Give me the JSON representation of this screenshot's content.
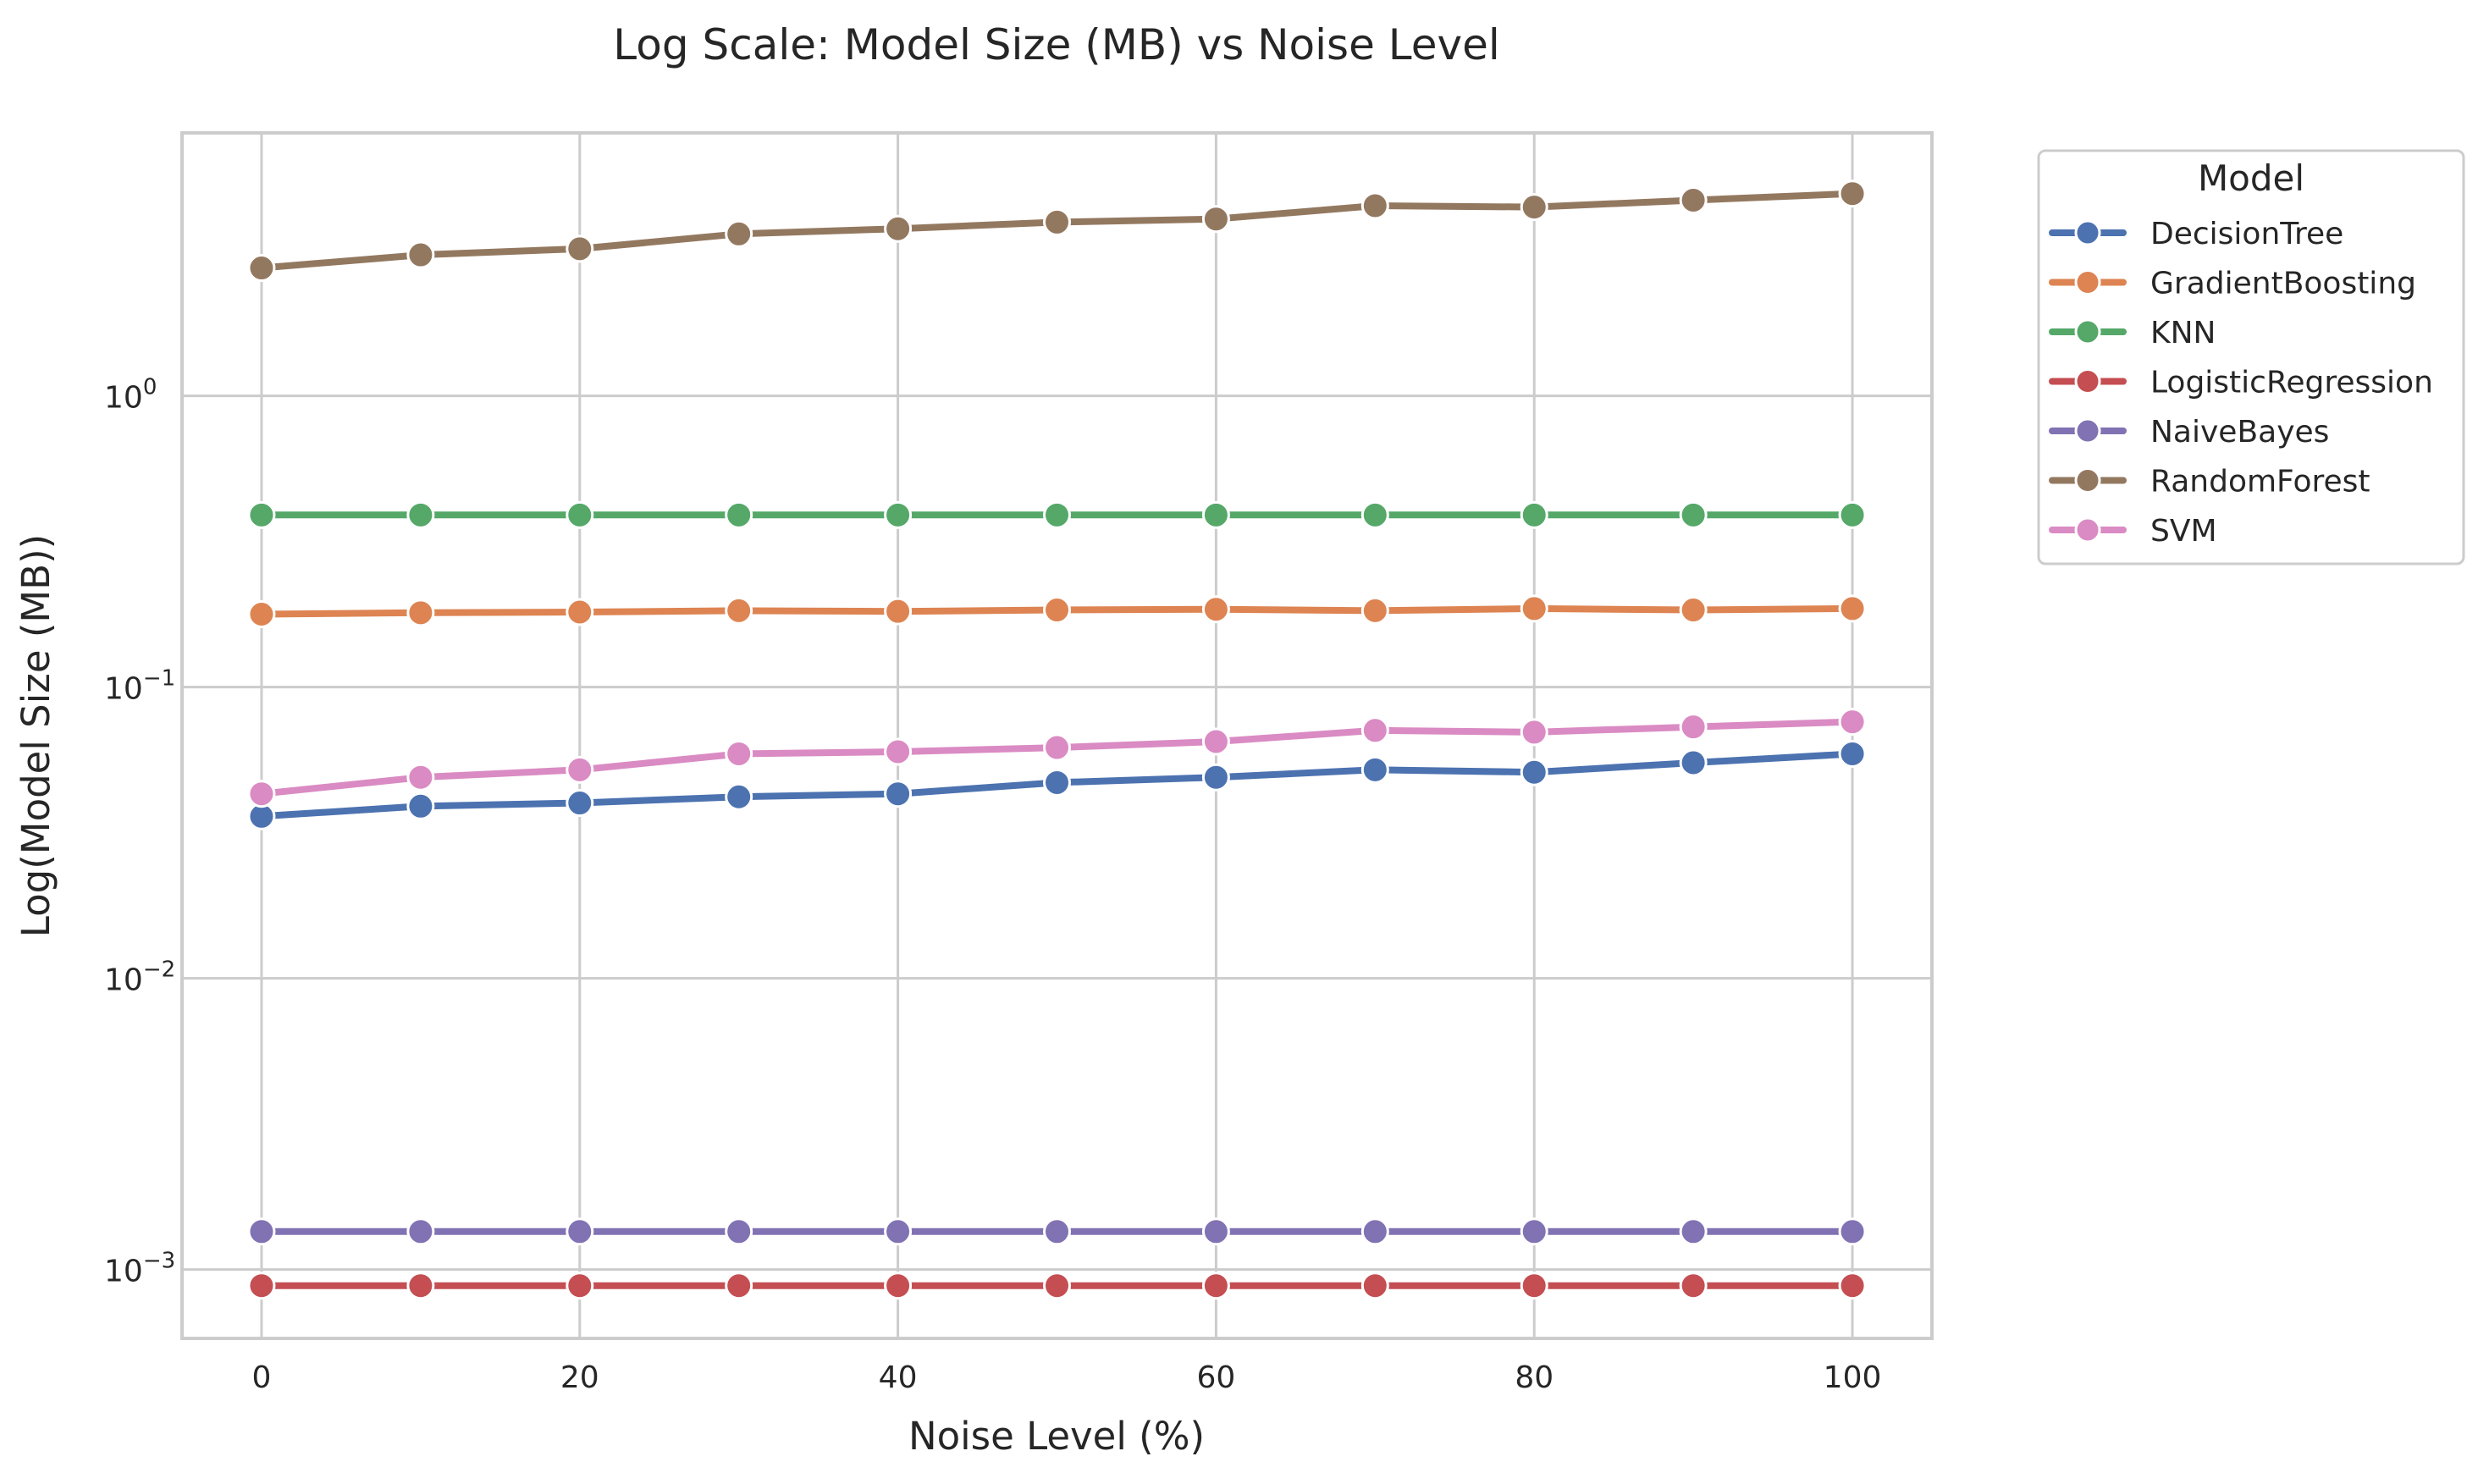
{
  "chart_data": {
    "type": "line",
    "title": "Log Scale: Model Size (MB) vs Noise Level",
    "xlabel": "Noise Level (%)",
    "ylabel": "Log(Model Size (MB))",
    "yscale": "log",
    "xlim": [
      -5,
      105
    ],
    "ylim": [
      0.00058,
      8.0
    ],
    "grid": true,
    "legend_title": "Model",
    "legend_position": "outside-top-right",
    "x": [
      0,
      10,
      20,
      30,
      40,
      50,
      60,
      70,
      80,
      90,
      100
    ],
    "x_ticks": [
      {
        "value": 0,
        "label": "0"
      },
      {
        "value": 20,
        "label": "20"
      },
      {
        "value": 40,
        "label": "40"
      },
      {
        "value": 60,
        "label": "60"
      },
      {
        "value": 80,
        "label": "80"
      },
      {
        "value": 100,
        "label": "100"
      }
    ],
    "y_ticks": [
      {
        "value": 1,
        "base": "10",
        "exp": "0"
      },
      {
        "value": 0.1,
        "base": "10",
        "exp": "−1"
      },
      {
        "value": 0.01,
        "base": "10",
        "exp": "−2"
      },
      {
        "value": 0.001,
        "base": "10",
        "exp": "−3"
      }
    ],
    "series": [
      {
        "name": "DecisionTree",
        "color": "#4c72b0",
        "values": [
          0.036,
          0.039,
          0.04,
          0.042,
          0.043,
          0.047,
          0.049,
          0.052,
          0.051,
          0.055,
          0.059
        ]
      },
      {
        "name": "GradientBoosting",
        "color": "#dd8452",
        "values": [
          0.178,
          0.18,
          0.181,
          0.183,
          0.182,
          0.184,
          0.185,
          0.183,
          0.186,
          0.184,
          0.186
        ]
      },
      {
        "name": "KNN",
        "color": "#55a868",
        "values": [
          0.39,
          0.39,
          0.39,
          0.39,
          0.39,
          0.39,
          0.39,
          0.39,
          0.39,
          0.39,
          0.39
        ]
      },
      {
        "name": "LogisticRegression",
        "color": "#c44e52",
        "values": [
          0.00088,
          0.00088,
          0.00088,
          0.00088,
          0.00088,
          0.00088,
          0.00088,
          0.00088,
          0.00088,
          0.00088,
          0.00088
        ]
      },
      {
        "name": "NaiveBayes",
        "color": "#8172b3",
        "values": [
          0.00135,
          0.00135,
          0.00135,
          0.00135,
          0.00135,
          0.00135,
          0.00135,
          0.00135,
          0.00135,
          0.00135,
          0.00135
        ]
      },
      {
        "name": "RandomForest",
        "color": "#937860",
        "values": [
          2.75,
          3.05,
          3.2,
          3.6,
          3.75,
          3.95,
          4.05,
          4.5,
          4.45,
          4.7,
          4.95
        ]
      },
      {
        "name": "SVM",
        "color": "#da8bc3",
        "values": [
          0.043,
          0.049,
          0.052,
          0.059,
          0.06,
          0.062,
          0.065,
          0.071,
          0.07,
          0.073,
          0.076
        ]
      }
    ]
  }
}
